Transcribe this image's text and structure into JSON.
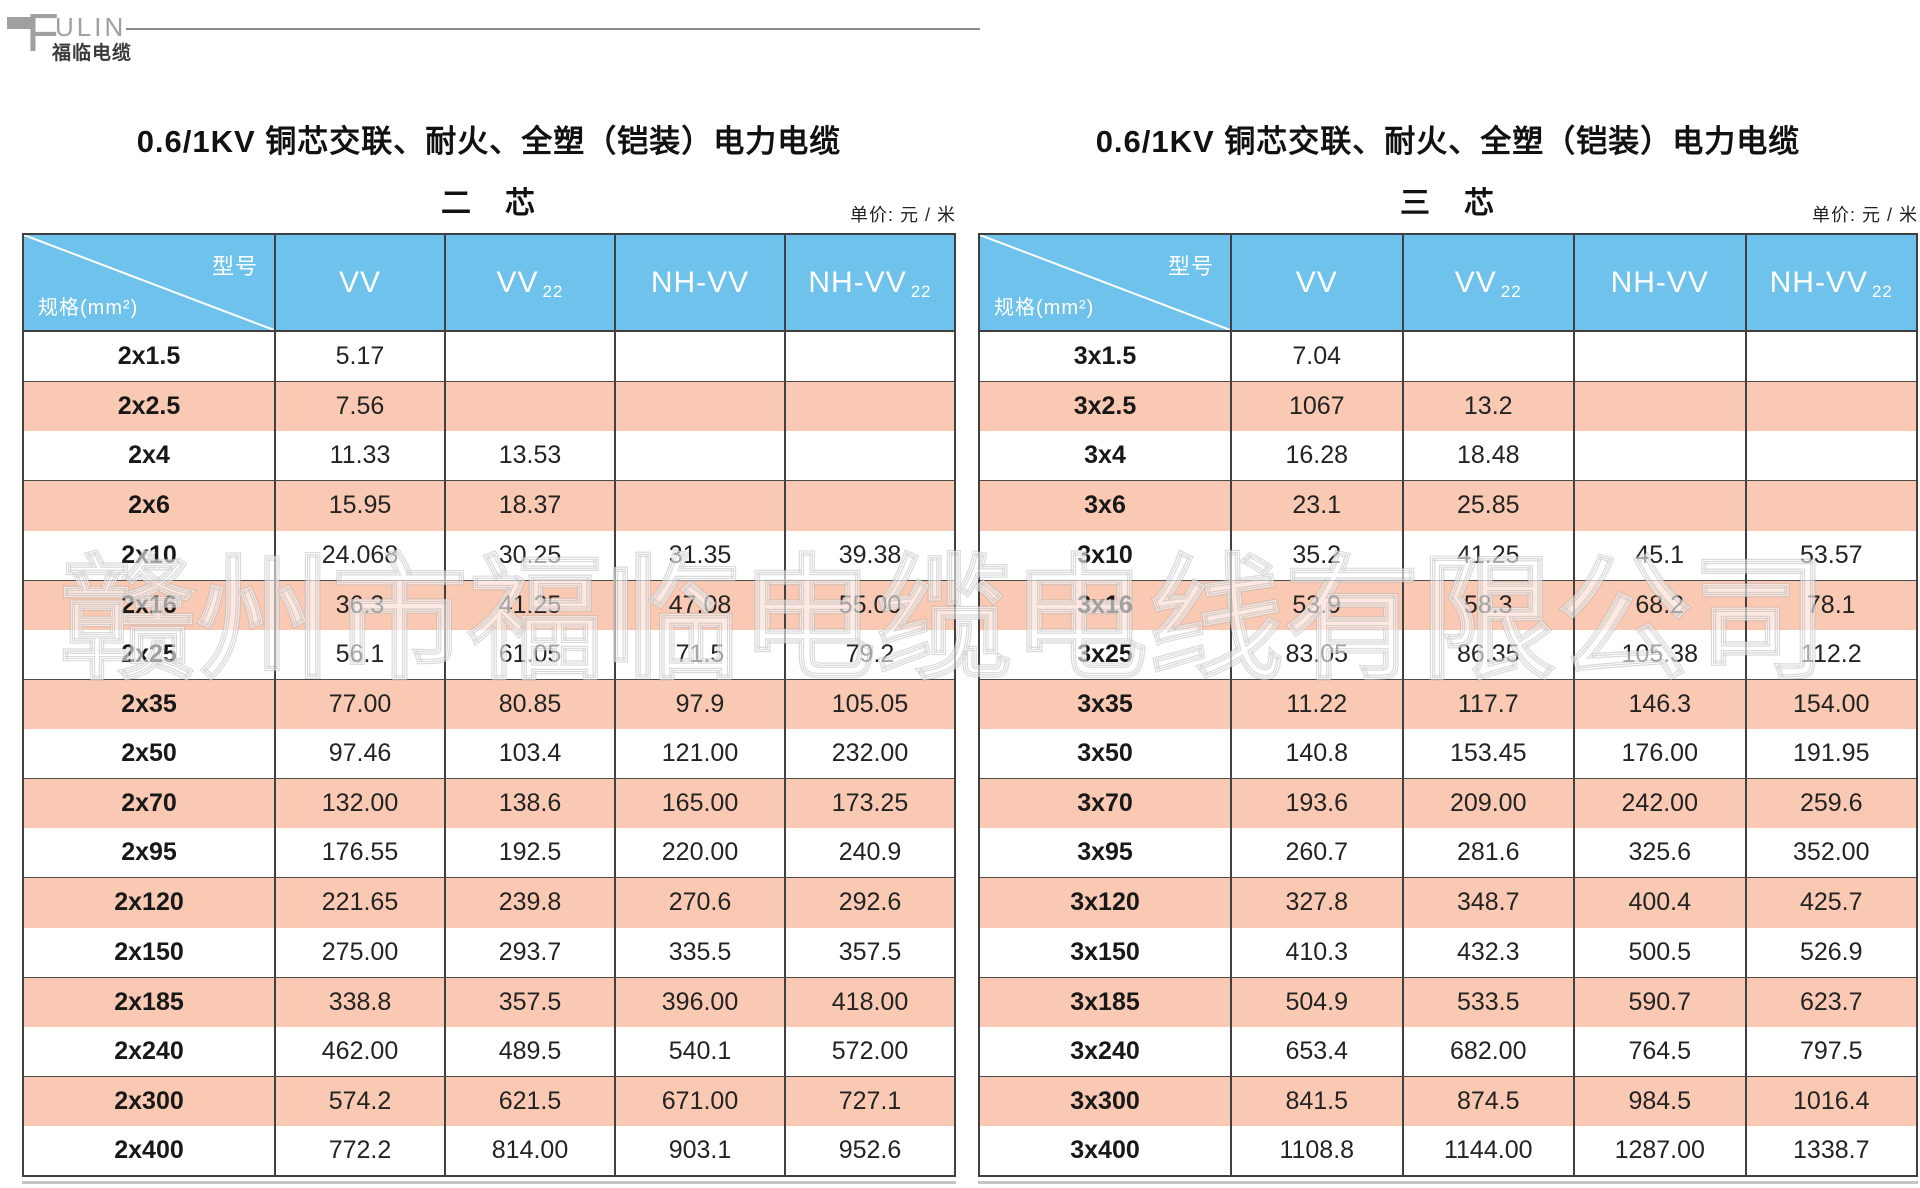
{
  "brand": {
    "logo_f": "F",
    "logo_rest": "ULIN",
    "chinese_name": "福临电缆"
  },
  "watermark": {
    "text": "赣州市福临电缆电线有限公司"
  },
  "colors": {
    "header_blue": "#6fc2eb",
    "row_salmon": "#f9c9b3",
    "border_dark": "#404040",
    "logo_gray": "#a0a0a0"
  },
  "tables": [
    {
      "title": "0.6/1KV 铜芯交联、耐火、全塑（铠装）电力电缆",
      "subtitle": "二　芯",
      "unit_note": "单价:  元 / 米",
      "corner": {
        "model_label": "型号",
        "spec_label": "规格(mm²)"
      },
      "columns": [
        {
          "label": "VV",
          "sub": ""
        },
        {
          "label": "VV",
          "sub": "22"
        },
        {
          "label": "NH-VV",
          "sub": ""
        },
        {
          "label": "NH-VV",
          "sub": "22"
        }
      ],
      "rows": [
        {
          "spec": "2x1.5",
          "values": [
            "5.17",
            "",
            "",
            ""
          ]
        },
        {
          "spec": "2x2.5",
          "values": [
            "7.56",
            "",
            "",
            ""
          ]
        },
        {
          "spec": "2x4",
          "values": [
            "11.33",
            "13.53",
            "",
            ""
          ]
        },
        {
          "spec": "2x6",
          "values": [
            "15.95",
            "18.37",
            "",
            ""
          ]
        },
        {
          "spec": "2x10",
          "values": [
            "24.068",
            "30.25",
            "31.35",
            "39.38"
          ]
        },
        {
          "spec": "2x16",
          "values": [
            "36.3",
            "41.25",
            "47.08",
            "55.00"
          ]
        },
        {
          "spec": "2x25",
          "values": [
            "56.1",
            "61.05",
            "71.5",
            "79.2"
          ]
        },
        {
          "spec": "2x35",
          "values": [
            "77.00",
            "80.85",
            "97.9",
            "105.05"
          ]
        },
        {
          "spec": "2x50",
          "values": [
            "97.46",
            "103.4",
            "121.00",
            "232.00"
          ]
        },
        {
          "spec": "2x70",
          "values": [
            "132.00",
            "138.6",
            "165.00",
            "173.25"
          ]
        },
        {
          "spec": "2x95",
          "values": [
            "176.55",
            "192.5",
            "220.00",
            "240.9"
          ]
        },
        {
          "spec": "2x120",
          "values": [
            "221.65",
            "239.8",
            "270.6",
            "292.6"
          ]
        },
        {
          "spec": "2x150",
          "values": [
            "275.00",
            "293.7",
            "335.5",
            "357.5"
          ]
        },
        {
          "spec": "2x185",
          "values": [
            "338.8",
            "357.5",
            "396.00",
            "418.00"
          ]
        },
        {
          "spec": "2x240",
          "values": [
            "462.00",
            "489.5",
            "540.1",
            "572.00"
          ]
        },
        {
          "spec": "2x300",
          "values": [
            "574.2",
            "621.5",
            "671.00",
            "727.1"
          ]
        },
        {
          "spec": "2x400",
          "values": [
            "772.2",
            "814.00",
            "903.1",
            "952.6"
          ]
        }
      ]
    },
    {
      "title": "0.6/1KV 铜芯交联、耐火、全塑（铠装）电力电缆",
      "subtitle": "三　芯",
      "unit_note": "单价:  元 / 米",
      "corner": {
        "model_label": "型号",
        "spec_label": "规格(mm²)"
      },
      "columns": [
        {
          "label": "VV",
          "sub": ""
        },
        {
          "label": "VV",
          "sub": "22"
        },
        {
          "label": "NH-VV",
          "sub": ""
        },
        {
          "label": "NH-VV",
          "sub": "22"
        }
      ],
      "rows": [
        {
          "spec": "3x1.5",
          "values": [
            "7.04",
            "",
            "",
            ""
          ]
        },
        {
          "spec": "3x2.5",
          "values": [
            "1067",
            "13.2",
            "",
            ""
          ]
        },
        {
          "spec": "3x4",
          "values": [
            "16.28",
            "18.48",
            "",
            ""
          ]
        },
        {
          "spec": "3x6",
          "values": [
            "23.1",
            "25.85",
            "",
            ""
          ]
        },
        {
          "spec": "3x10",
          "values": [
            "35.2",
            "41.25",
            "45.1",
            "53.57"
          ]
        },
        {
          "spec": "3x16",
          "values": [
            "53.9",
            "58.3",
            "68.2",
            "78.1"
          ]
        },
        {
          "spec": "3x25",
          "values": [
            "83.05",
            "86.35",
            "105.38",
            "112.2"
          ]
        },
        {
          "spec": "3x35",
          "values": [
            "11.22",
            "117.7",
            "146.3",
            "154.00"
          ]
        },
        {
          "spec": "3x50",
          "values": [
            "140.8",
            "153.45",
            "176.00",
            "191.95"
          ]
        },
        {
          "spec": "3x70",
          "values": [
            "193.6",
            "209.00",
            "242.00",
            "259.6"
          ]
        },
        {
          "spec": "3x95",
          "values": [
            "260.7",
            "281.6",
            "325.6",
            "352.00"
          ]
        },
        {
          "spec": "3x120",
          "values": [
            "327.8",
            "348.7",
            "400.4",
            "425.7"
          ]
        },
        {
          "spec": "3x150",
          "values": [
            "410.3",
            "432.3",
            "500.5",
            "526.9"
          ]
        },
        {
          "spec": "3x185",
          "values": [
            "504.9",
            "533.5",
            "590.7",
            "623.7"
          ]
        },
        {
          "spec": "3x240",
          "values": [
            "653.4",
            "682.00",
            "764.5",
            "797.5"
          ]
        },
        {
          "spec": "3x300",
          "values": [
            "841.5",
            "874.5",
            "984.5",
            "1016.4"
          ]
        },
        {
          "spec": "3x400",
          "values": [
            "1108.8",
            "1144.00",
            "1287.00",
            "1338.7"
          ]
        }
      ]
    }
  ]
}
